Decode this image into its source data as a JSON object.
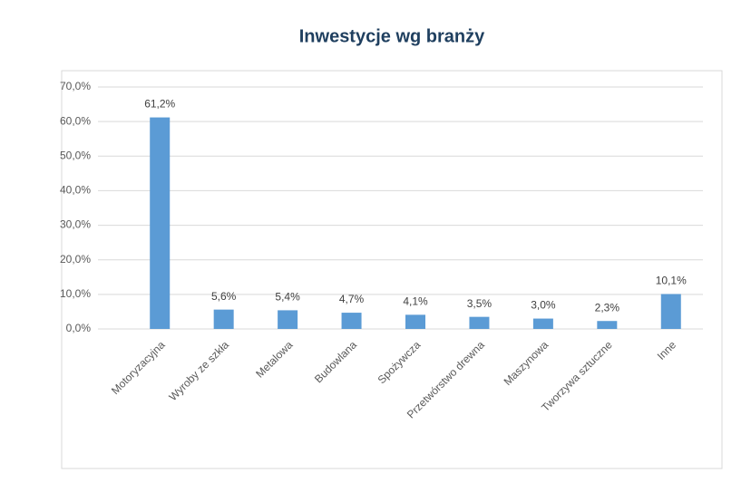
{
  "chart_data": {
    "type": "bar",
    "title": "Inwestycje wg branży",
    "categories": [
      "Motoryzacyjna",
      "Wyroby ze szkła",
      "Metalowa",
      "Budowlana",
      "Spożywcza",
      "Przetwórstwo drewna",
      "Maszynowa",
      "Tworzywa sztuczne",
      "Inne"
    ],
    "values": [
      61.2,
      5.6,
      5.4,
      4.7,
      4.1,
      3.5,
      3.0,
      2.3,
      10.1
    ],
    "value_labels": [
      "61,2%",
      "5,6%",
      "5,4%",
      "4,7%",
      "4,1%",
      "3,5%",
      "3,0%",
      "2,3%",
      "10,1%"
    ],
    "color": "#5b9bd5",
    "ylim": [
      0,
      70
    ],
    "yticks": [
      {
        "value": 0,
        "label": "0,0%"
      },
      {
        "value": 10,
        "label": "10,0%"
      },
      {
        "value": 20,
        "label": "20,0%"
      },
      {
        "value": 30,
        "label": "30,0%"
      },
      {
        "value": 40,
        "label": "40,0%"
      },
      {
        "value": 50,
        "label": "50,0%"
      },
      {
        "value": 60,
        "label": "60,0%"
      },
      {
        "value": 70,
        "label": "70,0%"
      }
    ],
    "grid": true
  }
}
